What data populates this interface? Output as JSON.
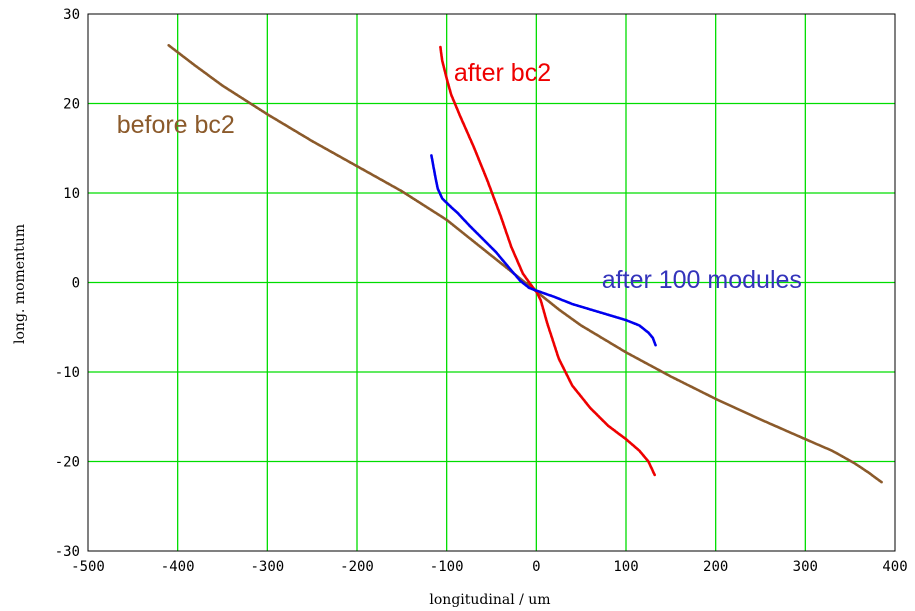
{
  "chart_data": {
    "type": "scatter",
    "xlabel": "longitudinal / um",
    "ylabel": "long. momentum",
    "xlim": [
      -500,
      400
    ],
    "ylim": [
      -30,
      30
    ],
    "x_ticks": [
      -500,
      -400,
      -300,
      -200,
      -100,
      0,
      100,
      200,
      300,
      400
    ],
    "y_ticks": [
      -30,
      -20,
      -10,
      0,
      10,
      20,
      30
    ],
    "x_tick_labels": [
      "-500",
      "-400",
      "-300",
      "-200",
      "-100",
      "0",
      "100",
      "200",
      "300",
      "400"
    ],
    "y_tick_labels": [
      "-30",
      "-20",
      "-10",
      "0",
      "10",
      "20",
      "30"
    ],
    "grid": true,
    "grid_color": "#00dd00",
    "series": [
      {
        "name": "before bc2",
        "color": "#8b5a2b",
        "points": [
          [
            -410,
            26.5
          ],
          [
            -380,
            24.2
          ],
          [
            -350,
            22.0
          ],
          [
            -300,
            18.8
          ],
          [
            -250,
            15.8
          ],
          [
            -200,
            13.0
          ],
          [
            -150,
            10.2
          ],
          [
            -100,
            7.0
          ],
          [
            -75,
            5.0
          ],
          [
            -50,
            3.0
          ],
          [
            -25,
            1.0
          ],
          [
            0,
            -1.0
          ],
          [
            25,
            -3.0
          ],
          [
            50,
            -4.8
          ],
          [
            100,
            -7.8
          ],
          [
            150,
            -10.5
          ],
          [
            200,
            -13.0
          ],
          [
            250,
            -15.3
          ],
          [
            300,
            -17.5
          ],
          [
            330,
            -18.8
          ],
          [
            355,
            -20.2
          ],
          [
            370,
            -21.2
          ],
          [
            385,
            -22.3
          ]
        ]
      },
      {
        "name": "after bc2",
        "color": "#ee0000",
        "points": [
          [
            -107,
            26.3
          ],
          [
            -105,
            24.8
          ],
          [
            -100,
            22.8
          ],
          [
            -95,
            21.0
          ],
          [
            -85,
            18.6
          ],
          [
            -70,
            15.2
          ],
          [
            -55,
            11.5
          ],
          [
            -40,
            7.5
          ],
          [
            -28,
            4.0
          ],
          [
            -15,
            1.0
          ],
          [
            -5,
            -0.4
          ],
          [
            0,
            -1.0
          ],
          [
            5,
            -2.0
          ],
          [
            12,
            -4.5
          ],
          [
            25,
            -8.5
          ],
          [
            40,
            -11.5
          ],
          [
            60,
            -14.0
          ],
          [
            80,
            -16.0
          ],
          [
            100,
            -17.5
          ],
          [
            115,
            -18.8
          ],
          [
            125,
            -20.0
          ],
          [
            132,
            -21.5
          ]
        ]
      },
      {
        "name": "after 100 modules",
        "color": "#0000ee",
        "points": [
          [
            -117,
            14.2
          ],
          [
            -113,
            12.0
          ],
          [
            -110,
            10.5
          ],
          [
            -105,
            9.4
          ],
          [
            -98,
            8.7
          ],
          [
            -88,
            7.8
          ],
          [
            -75,
            6.4
          ],
          [
            -60,
            4.9
          ],
          [
            -45,
            3.4
          ],
          [
            -30,
            1.6
          ],
          [
            -18,
            0.2
          ],
          [
            -8,
            -0.6
          ],
          [
            0,
            -0.9
          ],
          [
            20,
            -1.6
          ],
          [
            40,
            -2.4
          ],
          [
            60,
            -3.0
          ],
          [
            80,
            -3.6
          ],
          [
            100,
            -4.2
          ],
          [
            115,
            -4.8
          ],
          [
            125,
            -5.6
          ],
          [
            130,
            -6.2
          ],
          [
            133,
            -7.0
          ]
        ]
      }
    ],
    "annotations": [
      {
        "text": "before bc2",
        "color": "#8b5a2b",
        "x": -468,
        "y": 16.7
      },
      {
        "text": "after bc2",
        "color": "#ee0000",
        "x": -92,
        "y": 22.5
      },
      {
        "text": "after 100 modules",
        "color": "#3333bb",
        "x": 73,
        "y": -0.6
      }
    ]
  }
}
